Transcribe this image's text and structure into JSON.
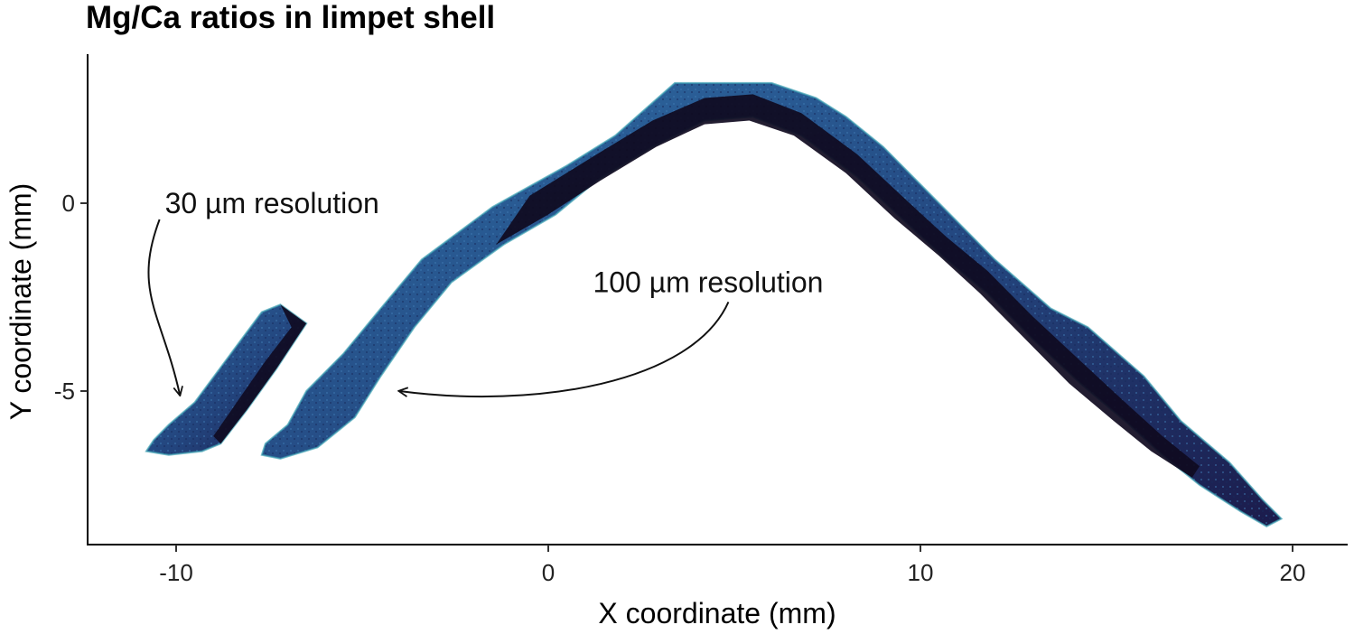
{
  "chart_data": {
    "type": "heatmap",
    "title": "Mg/Ca ratios in limpet shell",
    "xlabel": "X coordinate (mm)",
    "ylabel": "Y coordinate (mm)",
    "xlim": [
      -12.5,
      21.5
    ],
    "ylim": [
      -9.2,
      4.0
    ],
    "x_ticks": [
      -10,
      0,
      10,
      20
    ],
    "y_ticks": [
      0,
      -5
    ],
    "grid": false,
    "legend": "none",
    "colormap": [
      "#0f0a20",
      "#1b1b4b",
      "#23457e",
      "#2e6ea6",
      "#3aa0b2",
      "#7ad3b0"
    ],
    "regions": [
      {
        "name": "30 µm resolution",
        "outline": [
          [
            -10.8,
            -6.6
          ],
          [
            -10.6,
            -6.3
          ],
          [
            -10.2,
            -5.9
          ],
          [
            -9.5,
            -5.3
          ],
          [
            -8.9,
            -4.5
          ],
          [
            -8.3,
            -3.7
          ],
          [
            -7.7,
            -2.9
          ],
          [
            -7.2,
            -2.7
          ],
          [
            -6.5,
            -3.2
          ],
          [
            -7.3,
            -4.4
          ],
          [
            -8.1,
            -5.5
          ],
          [
            -8.8,
            -6.4
          ],
          [
            -9.3,
            -6.6
          ],
          [
            -10.2,
            -6.7
          ]
        ]
      },
      {
        "name": "100 µm resolution",
        "outline": [
          [
            -7.7,
            -6.7
          ],
          [
            -7.6,
            -6.4
          ],
          [
            -7.0,
            -5.9
          ],
          [
            -6.5,
            -5.0
          ],
          [
            -5.5,
            -4.0
          ],
          [
            -4.5,
            -2.8
          ],
          [
            -3.4,
            -1.5
          ],
          [
            -1.5,
            -0.1
          ],
          [
            0.5,
            1.0
          ],
          [
            1.8,
            1.8
          ],
          [
            3.4,
            3.2
          ],
          [
            6.0,
            3.2
          ],
          [
            7.2,
            2.8
          ],
          [
            8.0,
            2.3
          ],
          [
            9.0,
            1.5
          ],
          [
            10.5,
            0.0
          ],
          [
            12.0,
            -1.5
          ],
          [
            13.5,
            -2.8
          ],
          [
            14.5,
            -3.3
          ],
          [
            16.0,
            -4.6
          ],
          [
            17.0,
            -5.8
          ],
          [
            18.3,
            -6.9
          ],
          [
            19.2,
            -7.9
          ],
          [
            19.7,
            -8.4
          ],
          [
            19.3,
            -8.6
          ],
          [
            18.6,
            -8.2
          ],
          [
            17.5,
            -7.5
          ],
          [
            16.5,
            -6.7
          ],
          [
            15.5,
            -5.8
          ],
          [
            14.3,
            -4.8
          ],
          [
            13.0,
            -3.6
          ],
          [
            11.8,
            -2.4
          ],
          [
            10.7,
            -1.5
          ],
          [
            9.6,
            -0.5
          ],
          [
            8.3,
            0.7
          ],
          [
            6.8,
            1.8
          ],
          [
            5.5,
            2.3
          ],
          [
            4.2,
            2.2
          ],
          [
            2.8,
            1.5
          ],
          [
            1.3,
            0.6
          ],
          [
            0.2,
            -0.3
          ],
          [
            -1.2,
            -1.1
          ],
          [
            -2.6,
            -2.1
          ],
          [
            -3.6,
            -3.3
          ],
          [
            -4.5,
            -4.6
          ],
          [
            -5.2,
            -5.7
          ],
          [
            -6.2,
            -6.5
          ],
          [
            -7.2,
            -6.8
          ]
        ]
      }
    ],
    "annotations": [
      {
        "text": "30 µm resolution",
        "label_x": -10.3,
        "label_y": 0.0,
        "arrow_to_x": -9.9,
        "arrow_to_y": -5.1
      },
      {
        "text": "100 µm resolution",
        "label_x": 1.2,
        "label_y": -2.1,
        "arrow_to_x": -4.0,
        "arrow_to_y": -5.0
      }
    ]
  }
}
